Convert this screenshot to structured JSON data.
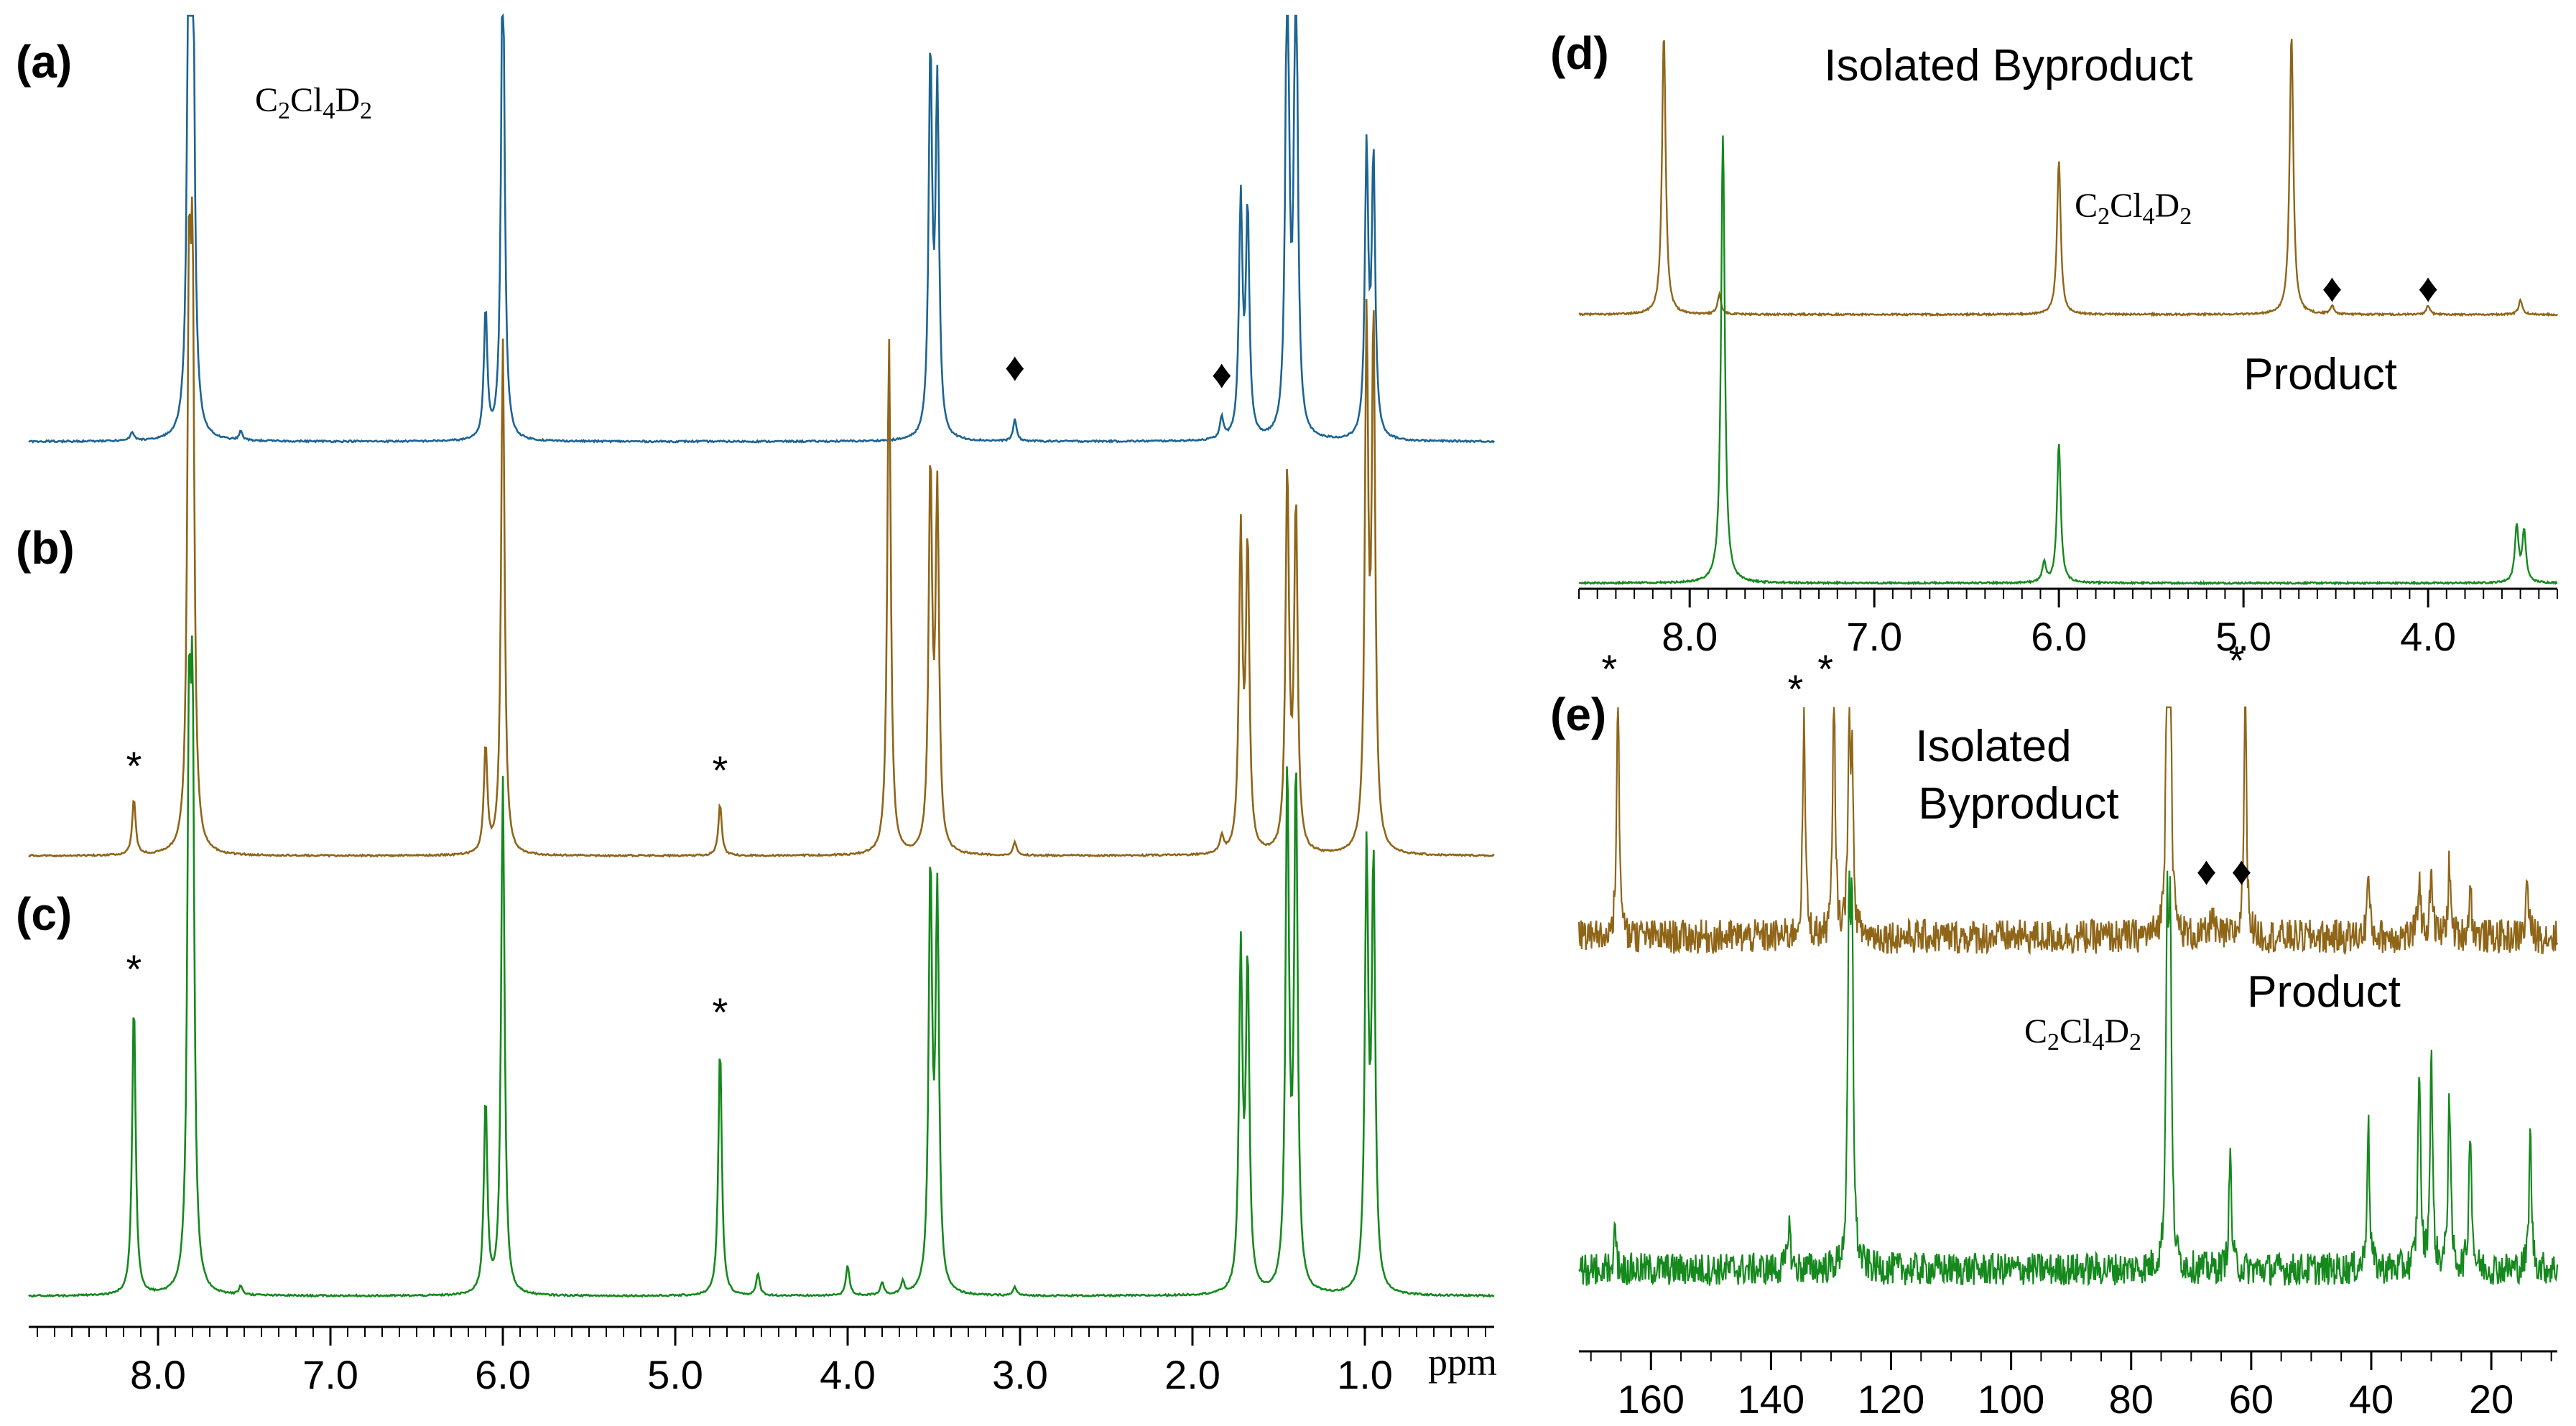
{
  "colors": {
    "a": "#1c6493",
    "byproduct": "#8f6518",
    "product": "#15891d",
    "axis": "#000000"
  },
  "labels": {
    "a": "(a)",
    "b": "(b)",
    "c": "(c)",
    "d": "(d)",
    "e": "(e)"
  },
  "axis_unit": "ppm",
  "marks": {
    "star": "*",
    "diamond": "♦"
  },
  "chart_data": [
    {
      "panel": "a-c",
      "type": "line",
      "title": "",
      "xlabel": "ppm",
      "ylabel": "",
      "x_direction": "descending",
      "xlim": [
        8.75,
        0.25
      ],
      "xticks": [
        "8.0",
        "7.0",
        "6.0",
        "5.0",
        "4.0",
        "3.0",
        "2.0",
        "1.0"
      ],
      "tick_values": [
        8.0,
        7.0,
        6.0,
        5.0,
        4.0,
        3.0,
        2.0,
        1.0
      ],
      "series": [
        {
          "name": "a",
          "label": "(a)",
          "color": "#1c6493",
          "peaks": [
            {
              "ppm": 8.15,
              "h": 0.02
            },
            {
              "ppm": 7.82,
              "h": 1.2
            },
            {
              "ppm": 7.8,
              "h": 1.2
            },
            {
              "ppm": 7.52,
              "h": 0.02
            },
            {
              "ppm": 6.1,
              "h": 0.3
            },
            {
              "ppm": 6.0,
              "h": 1.2
            },
            {
              "ppm": 3.52,
              "h": 0.88
            },
            {
              "ppm": 3.48,
              "h": 0.8
            },
            {
              "ppm": 3.03,
              "h": 0.05
            },
            {
              "ppm": 1.83,
              "h": 0.05
            },
            {
              "ppm": 1.72,
              "h": 0.55
            },
            {
              "ppm": 1.68,
              "h": 0.52
            },
            {
              "ppm": 1.45,
              "h": 1.2
            },
            {
              "ppm": 1.4,
              "h": 1.2
            },
            {
              "ppm": 0.99,
              "h": 0.66
            },
            {
              "ppm": 0.95,
              "h": 0.64
            }
          ],
          "annotations": [
            {
              "text": "C2Cl4D2",
              "ppm": 6.0
            },
            {
              "text": "♦",
              "ppm": 3.03
            },
            {
              "text": "♦",
              "ppm": 1.83
            }
          ]
        },
        {
          "name": "b",
          "label": "(b)",
          "color": "#8f6518",
          "peaks": [
            {
              "ppm": 8.14,
              "h": 0.13
            },
            {
              "ppm": 7.82,
              "h": 1.2
            },
            {
              "ppm": 7.8,
              "h": 1.2
            },
            {
              "ppm": 6.1,
              "h": 0.25
            },
            {
              "ppm": 6.0,
              "h": 1.2
            },
            {
              "ppm": 4.74,
              "h": 0.12
            },
            {
              "ppm": 3.76,
              "h": 1.2
            },
            {
              "ppm": 3.52,
              "h": 0.88
            },
            {
              "ppm": 3.48,
              "h": 0.82
            },
            {
              "ppm": 3.03,
              "h": 0.03
            },
            {
              "ppm": 1.83,
              "h": 0.04
            },
            {
              "ppm": 1.72,
              "h": 0.73
            },
            {
              "ppm": 1.68,
              "h": 0.7
            },
            {
              "ppm": 1.45,
              "h": 0.88
            },
            {
              "ppm": 1.4,
              "h": 0.8
            },
            {
              "ppm": 0.99,
              "h": 1.2
            },
            {
              "ppm": 0.95,
              "h": 1.2
            }
          ],
          "annotations": [
            {
              "text": "*",
              "ppm": 8.14
            },
            {
              "text": "*",
              "ppm": 4.74
            }
          ]
        },
        {
          "name": "c",
          "label": "(c)",
          "color": "#15891d",
          "peaks": [
            {
              "ppm": 8.14,
              "h": 0.68
            },
            {
              "ppm": 7.82,
              "h": 1.2
            },
            {
              "ppm": 7.8,
              "h": 1.2
            },
            {
              "ppm": 7.52,
              "h": 0.02
            },
            {
              "ppm": 6.1,
              "h": 0.45
            },
            {
              "ppm": 6.0,
              "h": 1.2
            },
            {
              "ppm": 4.74,
              "h": 0.58
            },
            {
              "ppm": 4.52,
              "h": 0.05
            },
            {
              "ppm": 4.0,
              "h": 0.07
            },
            {
              "ppm": 3.8,
              "h": 0.03
            },
            {
              "ppm": 3.68,
              "h": 0.03
            },
            {
              "ppm": 3.52,
              "h": 0.97
            },
            {
              "ppm": 3.48,
              "h": 0.9
            },
            {
              "ppm": 3.03,
              "h": 0.02
            },
            {
              "ppm": 1.72,
              "h": 0.78
            },
            {
              "ppm": 1.68,
              "h": 0.75
            },
            {
              "ppm": 1.45,
              "h": 1.2
            },
            {
              "ppm": 1.4,
              "h": 1.2
            },
            {
              "ppm": 0.99,
              "h": 1.0
            },
            {
              "ppm": 0.95,
              "h": 0.98
            }
          ],
          "annotations": [
            {
              "text": "*",
              "ppm": 8.14
            },
            {
              "text": "*",
              "ppm": 4.74
            }
          ]
        }
      ]
    },
    {
      "panel": "d",
      "type": "line",
      "title": "",
      "xlabel": "",
      "ylabel": "",
      "x_direction": "descending",
      "xlim": [
        8.6,
        3.3
      ],
      "xticks": [
        "8.0",
        "7.0",
        "6.0",
        "5.0",
        "4.0"
      ],
      "tick_values": [
        8.0,
        7.0,
        6.0,
        5.0,
        4.0
      ],
      "series": [
        {
          "name": "Isolated Byproduct",
          "color": "#8f6518",
          "peaks": [
            {
              "ppm": 8.14,
              "h": 1.0
            },
            {
              "ppm": 7.84,
              "h": 0.07
            },
            {
              "ppm": 6.0,
              "h": 0.55
            },
            {
              "ppm": 4.74,
              "h": 1.0
            },
            {
              "ppm": 4.52,
              "h": 0.03
            },
            {
              "ppm": 4.0,
              "h": 0.03
            },
            {
              "ppm": 3.5,
              "h": 0.05
            }
          ],
          "annotations": [
            {
              "text": "Isolated Byproduct"
            },
            {
              "text": "C2Cl4D2",
              "ppm": 6.0
            },
            {
              "text": "♦",
              "ppm": 4.52
            },
            {
              "text": "♦",
              "ppm": 4.0
            }
          ]
        },
        {
          "name": "Product",
          "color": "#15891d",
          "peaks": [
            {
              "ppm": 7.82,
              "h": 1.6
            },
            {
              "ppm": 6.08,
              "h": 0.07
            },
            {
              "ppm": 6.0,
              "h": 0.5
            },
            {
              "ppm": 3.52,
              "h": 0.2
            },
            {
              "ppm": 3.48,
              "h": 0.18
            }
          ],
          "annotations": [
            {
              "text": "Product"
            }
          ]
        }
      ]
    },
    {
      "panel": "e",
      "type": "line",
      "title": "",
      "xlabel": "",
      "ylabel": "",
      "x_direction": "descending",
      "xlim": [
        172,
        9
      ],
      "xticks": [
        "160",
        "140",
        "120",
        "100",
        "80",
        "60",
        "40",
        "20"
      ],
      "tick_values": [
        160,
        140,
        120,
        100,
        80,
        60,
        40,
        20
      ],
      "series": [
        {
          "name": "Isolated Byproduct",
          "color": "#8f6518",
          "peaks": [
            {
              "ppm": 165.5,
              "h": 0.85
            },
            {
              "ppm": 134.5,
              "h": 0.78
            },
            {
              "ppm": 129.5,
              "h": 0.85
            },
            {
              "ppm": 127.0,
              "h": 0.68
            },
            {
              "ppm": 126.5,
              "h": 0.55
            },
            {
              "ppm": 74.0,
              "h": 1.0
            },
            {
              "ppm": 73.5,
              "h": 1.0
            },
            {
              "ppm": 66.5,
              "h": 0.1
            },
            {
              "ppm": 61.0,
              "h": 0.88
            },
            {
              "ppm": 40.5,
              "h": 0.22
            },
            {
              "ppm": 32.0,
              "h": 0.22
            },
            {
              "ppm": 30.0,
              "h": 0.25
            },
            {
              "ppm": 27.0,
              "h": 0.25
            },
            {
              "ppm": 23.5,
              "h": 0.18
            },
            {
              "ppm": 14.0,
              "h": 0.2
            }
          ],
          "annotations": [
            {
              "text": "*",
              "ppm": 165.5
            },
            {
              "text": "*",
              "ppm": 134.5
            },
            {
              "text": "*",
              "ppm": 129.5
            },
            {
              "text": "*",
              "ppm": 61.0
            },
            {
              "text": "♦",
              "ppm": 66.5
            },
            {
              "text": "♦",
              "ppm": 64.0
            },
            {
              "text": "Isolated"
            },
            {
              "text": "Byproduct"
            }
          ]
        },
        {
          "name": "Product",
          "color": "#15891d",
          "peaks": [
            {
              "ppm": 166.0,
              "h": 0.1
            },
            {
              "ppm": 137.0,
              "h": 0.15
            },
            {
              "ppm": 127.0,
              "h": 1.0
            },
            {
              "ppm": 126.5,
              "h": 1.0
            },
            {
              "ppm": 74.0,
              "h": 1.0
            },
            {
              "ppm": 73.5,
              "h": 1.0
            },
            {
              "ppm": 63.5,
              "h": 0.35
            },
            {
              "ppm": 40.5,
              "h": 0.45
            },
            {
              "ppm": 32.0,
              "h": 0.63
            },
            {
              "ppm": 30.0,
              "h": 0.65
            },
            {
              "ppm": 27.0,
              "h": 0.54
            },
            {
              "ppm": 23.5,
              "h": 0.45
            },
            {
              "ppm": 13.5,
              "h": 0.41
            }
          ],
          "annotations": [
            {
              "text": "Product"
            },
            {
              "text": "C2Cl4D2",
              "ppm": 74.0
            }
          ]
        }
      ]
    }
  ]
}
